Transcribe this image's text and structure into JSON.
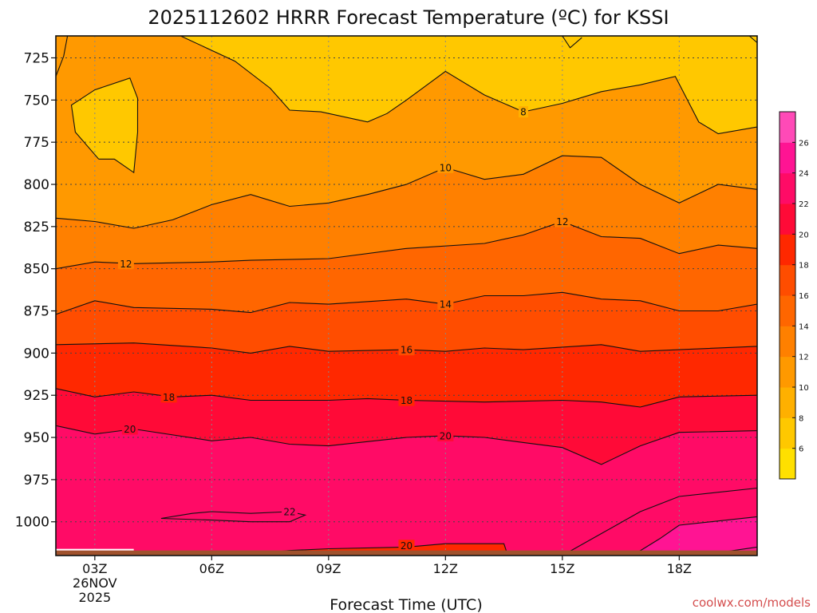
{
  "chart_data": {
    "type": "contour",
    "title": "2025112602 HRRR Forecast Temperature (ºC) for KSSI",
    "xlabel": "Forecast Time (UTC)",
    "ylabel": "",
    "watermark": "coolwx.com/models",
    "x_ticks": [
      {
        "hour": 3,
        "label": "03Z",
        "sub": [
          "26NOV",
          "2025"
        ]
      },
      {
        "hour": 6,
        "label": "06Z"
      },
      {
        "hour": 9,
        "label": "09Z"
      },
      {
        "hour": 12,
        "label": "12Z"
      },
      {
        "hour": 15,
        "label": "15Z"
      },
      {
        "hour": 18,
        "label": "18Z"
      }
    ],
    "xlim": [
      2,
      20
    ],
    "y_ticks": [
      725,
      750,
      775,
      800,
      825,
      850,
      875,
      900,
      925,
      950,
      975,
      1000
    ],
    "ylim_hPa": [
      712,
      1020
    ],
    "ground_level_hPa": 1017,
    "colorbar_levels": [
      6,
      8,
      10,
      12,
      14,
      16,
      18,
      20,
      22,
      24,
      26
    ],
    "colorbar_colors": [
      "#ffe000",
      "#ffc800",
      "#ffb000",
      "#ff9900",
      "#ff8000",
      "#ff6600",
      "#ff4d00",
      "#ff2800",
      "#ff0a37",
      "#ff0b66",
      "#ff1493",
      "#ff4ab7"
    ],
    "contours": [
      {
        "level": 8,
        "points": [
          [
            2.0,
            736
          ],
          [
            2.2,
            724
          ],
          [
            2.3,
            712
          ]
        ],
        "labels": []
      },
      {
        "level": 8,
        "points": [
          [
            3.1,
            785
          ],
          [
            2.5,
            769
          ],
          [
            2.4,
            753
          ],
          [
            3.0,
            744
          ],
          [
            3.9,
            737
          ],
          [
            4.1,
            749
          ],
          [
            4.1,
            769
          ],
          [
            4.0,
            793
          ],
          [
            3.5,
            785
          ],
          [
            3.1,
            785
          ]
        ],
        "labels": []
      },
      {
        "level": 8,
        "points": [
          [
            5.2,
            712
          ],
          [
            6.6,
            727
          ],
          [
            7.5,
            743
          ],
          [
            8.0,
            756
          ],
          [
            8.8,
            757
          ],
          [
            10.0,
            763
          ],
          [
            10.5,
            758
          ],
          [
            11.0,
            750
          ],
          [
            12.0,
            733
          ],
          [
            13.0,
            747
          ],
          [
            14.0,
            757
          ],
          [
            15.0,
            752
          ],
          [
            16.0,
            745
          ],
          [
            17.0,
            741
          ],
          [
            17.9,
            736
          ],
          [
            18.5,
            763
          ],
          [
            19.0,
            770
          ],
          [
            20.0,
            766
          ]
        ],
        "labels": [
          [
            14.0,
            757
          ]
        ]
      },
      {
        "level": 8,
        "points": [
          [
            15.0,
            712
          ],
          [
            15.2,
            719
          ],
          [
            15.5,
            713
          ]
        ],
        "labels": []
      },
      {
        "level": 8,
        "points": [
          [
            19.8,
            712
          ],
          [
            20.0,
            716
          ]
        ],
        "labels": []
      },
      {
        "level": 10,
        "points": [
          [
            2.0,
            820
          ],
          [
            3.0,
            822
          ],
          [
            4.0,
            826
          ],
          [
            5.0,
            821
          ],
          [
            6.0,
            812
          ],
          [
            7.0,
            806
          ],
          [
            8.0,
            813
          ],
          [
            9.0,
            811
          ],
          [
            10.0,
            806
          ],
          [
            11.0,
            800
          ],
          [
            12.0,
            790
          ],
          [
            13.0,
            797
          ],
          [
            14.0,
            794
          ],
          [
            15.0,
            783
          ],
          [
            16.0,
            784
          ],
          [
            17.0,
            800
          ],
          [
            18.0,
            811
          ],
          [
            19.0,
            800
          ],
          [
            20.0,
            803
          ]
        ],
        "labels": [
          [
            12.0,
            790
          ]
        ]
      },
      {
        "level": 12,
        "points": [
          [
            2.0,
            850
          ],
          [
            3.0,
            846
          ],
          [
            4.0,
            847
          ],
          [
            6.0,
            846
          ],
          [
            7.0,
            845
          ],
          [
            9.0,
            844
          ],
          [
            11.0,
            838
          ],
          [
            13.0,
            835
          ],
          [
            14.0,
            830
          ],
          [
            15.0,
            822
          ],
          [
            16.0,
            831
          ],
          [
            17.0,
            832
          ],
          [
            18.0,
            841
          ],
          [
            19.0,
            836
          ],
          [
            20.0,
            838
          ]
        ],
        "labels": [
          [
            3.8,
            847
          ],
          [
            15.0,
            822
          ]
        ]
      },
      {
        "level": 14,
        "points": [
          [
            2.0,
            877
          ],
          [
            3.0,
            869
          ],
          [
            4.0,
            873
          ],
          [
            6.0,
            874
          ],
          [
            7.0,
            876
          ],
          [
            8.0,
            870
          ],
          [
            9.0,
            871
          ],
          [
            11.0,
            868
          ],
          [
            12.0,
            871
          ],
          [
            13.0,
            866
          ],
          [
            14.0,
            866
          ],
          [
            15.0,
            864
          ],
          [
            16.0,
            868
          ],
          [
            17.0,
            869
          ],
          [
            18.0,
            875
          ],
          [
            19.0,
            875
          ],
          [
            20.0,
            871
          ]
        ],
        "labels": [
          [
            12.0,
            871
          ]
        ]
      },
      {
        "level": 16,
        "points": [
          [
            2.0,
            895
          ],
          [
            4.0,
            894
          ],
          [
            6.0,
            897
          ],
          [
            7.0,
            900
          ],
          [
            8.0,
            896
          ],
          [
            9.0,
            899
          ],
          [
            11.0,
            898
          ],
          [
            12.0,
            899
          ],
          [
            13.0,
            897
          ],
          [
            14.0,
            898
          ],
          [
            16.0,
            895
          ],
          [
            17.0,
            899
          ],
          [
            18.0,
            898
          ],
          [
            20.0,
            896
          ]
        ],
        "labels": [
          [
            11.0,
            898
          ]
        ]
      },
      {
        "level": 18,
        "points": [
          [
            2.0,
            921
          ],
          [
            3.0,
            926
          ],
          [
            4.0,
            923
          ],
          [
            5.0,
            926
          ],
          [
            6.0,
            925
          ],
          [
            7.0,
            928
          ],
          [
            9.0,
            928
          ],
          [
            10.0,
            927
          ],
          [
            11.0,
            928
          ],
          [
            13.0,
            929
          ],
          [
            15.0,
            928
          ],
          [
            16.0,
            929
          ],
          [
            17.0,
            932
          ],
          [
            18.0,
            926
          ],
          [
            20.0,
            925
          ]
        ],
        "labels": [
          [
            4.9,
            926
          ],
          [
            11.0,
            928
          ]
        ]
      },
      {
        "level": 20,
        "points": [
          [
            2.0,
            943
          ],
          [
            3.0,
            948
          ],
          [
            4.0,
            945
          ],
          [
            6.0,
            952
          ],
          [
            7.0,
            950
          ],
          [
            8.0,
            954
          ],
          [
            9.0,
            955
          ],
          [
            11.0,
            950
          ],
          [
            12.0,
            949
          ],
          [
            13.0,
            950
          ],
          [
            14.0,
            953
          ],
          [
            15.0,
            956
          ],
          [
            16.0,
            966
          ],
          [
            17.0,
            955
          ],
          [
            18.0,
            947
          ],
          [
            20.0,
            946
          ]
        ],
        "labels": [
          [
            3.9,
            945
          ],
          [
            12.0,
            949
          ]
        ]
      },
      {
        "level": 20,
        "points": [
          [
            6.5,
            1020
          ],
          [
            8.0,
            1017
          ],
          [
            9.0,
            1016
          ],
          [
            11.0,
            1015
          ],
          [
            12.0,
            1013
          ],
          [
            13.5,
            1013
          ],
          [
            13.6,
            1020
          ]
        ],
        "labels": [
          [
            11.0,
            1014
          ]
        ]
      },
      {
        "level": 22,
        "points": [
          [
            4.7,
            998
          ],
          [
            5.5,
            995
          ],
          [
            6.0,
            994
          ],
          [
            7.0,
            995
          ],
          [
            8.0,
            994
          ],
          [
            8.4,
            996
          ],
          [
            8.0,
            1000
          ],
          [
            7.0,
            1000
          ],
          [
            6.0,
            999
          ],
          [
            4.7,
            998
          ]
        ],
        "labels": [
          [
            8.0,
            994
          ]
        ]
      },
      {
        "level": 22,
        "points": [
          [
            15.0,
            1020
          ],
          [
            16.0,
            1007
          ],
          [
            17.0,
            994
          ],
          [
            18.0,
            985
          ],
          [
            20.0,
            980
          ]
        ],
        "labels": []
      },
      {
        "level": 24,
        "points": [
          [
            16.8,
            1020
          ],
          [
            17.5,
            1010
          ],
          [
            18.0,
            1002
          ],
          [
            20.0,
            997
          ]
        ],
        "labels": []
      },
      {
        "level": 26,
        "points": [
          [
            18.5,
            1020
          ],
          [
            20.0,
            1015
          ]
        ],
        "labels": []
      }
    ],
    "colorbar_ticks": [
      6,
      8,
      10,
      12,
      14,
      16,
      18,
      20,
      22,
      24,
      26
    ]
  }
}
